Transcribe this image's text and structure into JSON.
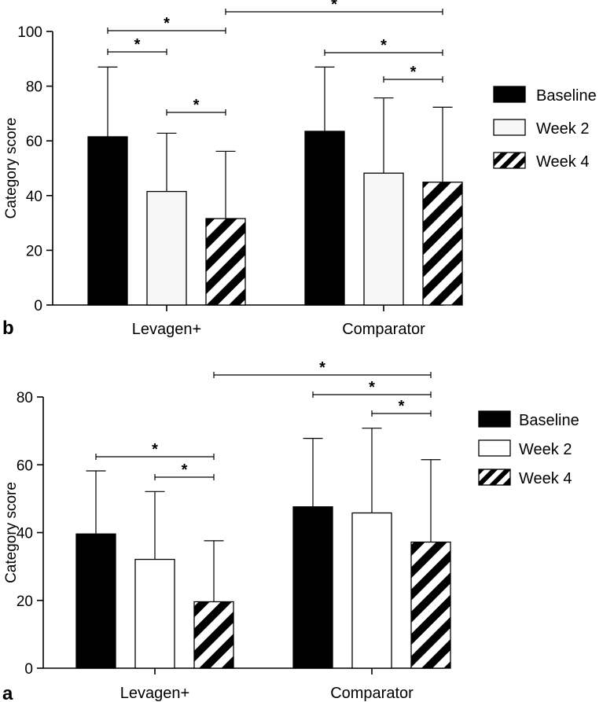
{
  "chart_data": [
    {
      "type": "bar",
      "panel_label": "b",
      "ylabel": "Category score",
      "ylim": [
        0,
        100
      ],
      "yticks": [
        0,
        20,
        40,
        60,
        80,
        100
      ],
      "categories": [
        "Levagen+",
        "Comparator"
      ],
      "series": [
        {
          "name": "Baseline",
          "values": [
            61.5,
            63.5
          ],
          "errors": [
            25.5,
            23.5
          ],
          "pattern": "solid"
        },
        {
          "name": "Week 2",
          "values": [
            41.5,
            48.2
          ],
          "errors": [
            21.3,
            27.5
          ],
          "pattern": "light"
        },
        {
          "name": "Week 4",
          "values": [
            31.6,
            44.9
          ],
          "errors": [
            24.6,
            27.4
          ],
          "pattern": "stripe"
        }
      ],
      "legend_position": "right",
      "significance": [
        {
          "group": 0,
          "from": 0,
          "to": 1,
          "label": "*"
        },
        {
          "group": 0,
          "from": 0,
          "to": 2,
          "label": "*"
        },
        {
          "group": 0,
          "from": 1,
          "to": 2,
          "label": "*"
        },
        {
          "group": 1,
          "from": 0,
          "to": 2,
          "label": "*"
        },
        {
          "group": 1,
          "from": 1,
          "to": 2,
          "label": "*"
        },
        {
          "cross": true,
          "from_group": 0,
          "from": 2,
          "to_group": 1,
          "to": 2,
          "label": "*"
        }
      ]
    },
    {
      "type": "bar",
      "panel_label": "a",
      "ylabel": "Category score",
      "ylim": [
        0,
        80
      ],
      "yticks": [
        0,
        20,
        40,
        60,
        80
      ],
      "categories": [
        "Levagen+",
        "Comparator"
      ],
      "series": [
        {
          "name": "Baseline",
          "values": [
            39.6,
            47.6
          ],
          "errors": [
            18.6,
            20.2
          ],
          "pattern": "solid"
        },
        {
          "name": "Week 2",
          "values": [
            32.1,
            45.8
          ],
          "errors": [
            20.0,
            25.0
          ],
          "pattern": "white"
        },
        {
          "name": "Week 4",
          "values": [
            19.6,
            37.2
          ],
          "errors": [
            18.0,
            24.3
          ],
          "pattern": "stripe"
        }
      ],
      "legend_position": "right",
      "significance": [
        {
          "group": 0,
          "from": 0,
          "to": 2,
          "label": "*"
        },
        {
          "group": 0,
          "from": 1,
          "to": 2,
          "label": "*"
        },
        {
          "group": 1,
          "from": 0,
          "to": 2,
          "label": "*"
        },
        {
          "group": 1,
          "from": 1,
          "to": 2,
          "label": "*"
        },
        {
          "cross": true,
          "from_group": 0,
          "from": 2,
          "to_group": 1,
          "to": 2,
          "label": "*"
        }
      ]
    }
  ]
}
